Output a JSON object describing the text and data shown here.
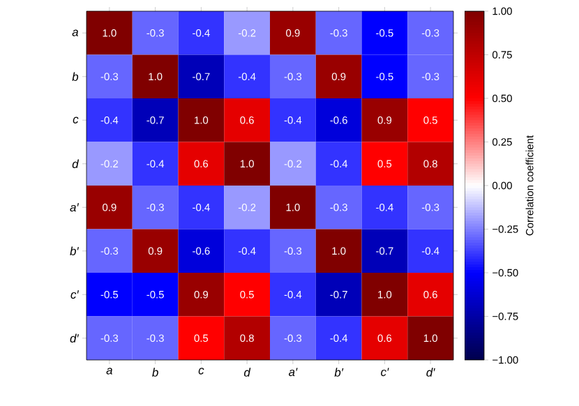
{
  "chart_data": {
    "type": "heatmap",
    "clabel": "Correlation coefficient",
    "categories": [
      "a",
      "b",
      "c",
      "d",
      "a′",
      "b′",
      "c′",
      "d′"
    ],
    "y_categories": [
      "a",
      "b",
      "c",
      "d",
      "a′",
      "b′",
      "c′",
      "d′"
    ],
    "cells": [
      [
        1.0,
        -0.3,
        -0.4,
        -0.2,
        0.9,
        -0.3,
        -0.5,
        -0.3
      ],
      [
        -0.3,
        1.0,
        -0.7,
        -0.4,
        -0.3,
        0.9,
        -0.5,
        -0.3
      ],
      [
        -0.4,
        -0.7,
        1.0,
        0.6,
        -0.4,
        -0.6,
        0.9,
        0.5
      ],
      [
        -0.2,
        -0.4,
        0.6,
        1.0,
        -0.2,
        -0.4,
        0.5,
        0.8
      ],
      [
        0.9,
        -0.3,
        -0.4,
        -0.2,
        1.0,
        -0.3,
        -0.4,
        -0.3
      ],
      [
        -0.3,
        0.9,
        -0.6,
        -0.4,
        -0.3,
        1.0,
        -0.7,
        -0.4
      ],
      [
        -0.5,
        -0.5,
        0.9,
        0.5,
        -0.4,
        -0.7,
        1.0,
        0.6
      ],
      [
        -0.3,
        -0.3,
        0.5,
        0.8,
        -0.3,
        -0.4,
        0.6,
        1.0
      ]
    ],
    "cell_labels": [
      [
        "1.0",
        "-0.3",
        "-0.4",
        "-0.2",
        "0.9",
        "-0.3",
        "-0.5",
        "-0.3"
      ],
      [
        "-0.3",
        "1.0",
        "-0.7",
        "-0.4",
        "-0.3",
        "0.9",
        "-0.5",
        "-0.3"
      ],
      [
        "-0.4",
        "-0.7",
        "1.0",
        "0.6",
        "-0.4",
        "-0.6",
        "0.9",
        "0.5"
      ],
      [
        "-0.2",
        "-0.4",
        "0.6",
        "1.0",
        "-0.2",
        "-0.4",
        "0.5",
        "0.8"
      ],
      [
        "0.9",
        "-0.3",
        "-0.4",
        "-0.2",
        "1.0",
        "-0.3",
        "-0.4",
        "-0.3"
      ],
      [
        "-0.3",
        "0.9",
        "-0.6",
        "-0.4",
        "-0.3",
        "1.0",
        "-0.7",
        "-0.4"
      ],
      [
        "-0.5",
        "-0.5",
        "0.9",
        "0.5",
        "-0.4",
        "-0.7",
        "1.0",
        "0.6"
      ],
      [
        "-0.3",
        "-0.3",
        "0.5",
        "0.8",
        "-0.3",
        "-0.4",
        "0.6",
        "1.0"
      ]
    ],
    "clim": [
      -1,
      1
    ],
    "cticks": [
      {
        "value": -1,
        "label": "−1.00"
      },
      {
        "value": -0.75,
        "label": "−0.75"
      },
      {
        "value": -0.5,
        "label": "−0.50"
      },
      {
        "value": -0.25,
        "label": "−0.25"
      },
      {
        "value": 0,
        "label": "0.00"
      },
      {
        "value": 0.25,
        "label": "0.25"
      },
      {
        "value": 0.5,
        "label": "0.50"
      },
      {
        "value": 0.75,
        "label": "0.75"
      },
      {
        "value": 1,
        "label": "1.00"
      }
    ]
  }
}
